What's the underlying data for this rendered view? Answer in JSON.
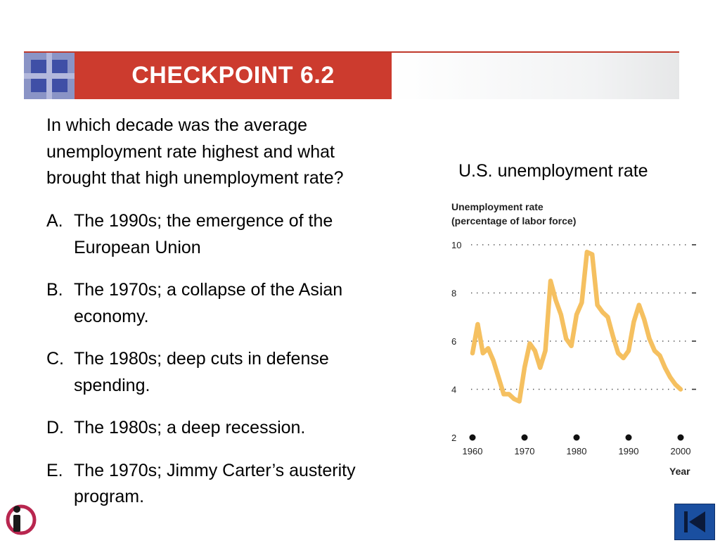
{
  "slide": {
    "title": "CHECKPOINT 6.2",
    "question": "In which decade was the average unemployment rate highest and what brought that high unemployment rate?",
    "options": [
      {
        "letter": "A.",
        "text": "The 1990s; the emergence of the European Union"
      },
      {
        "letter": "B.",
        "text": "The 1970s; a collapse of the Asian economy."
      },
      {
        "letter": "C.",
        "text": "The 1980s; deep cuts in defense spending."
      },
      {
        "letter": "D.",
        "text": "The 1980s; a deep recession."
      },
      {
        "letter": "E.",
        "text": "The 1970s; Jimmy Carter’s austerity program."
      }
    ],
    "chart_caption": "U.S. unemployment rate"
  },
  "colors": {
    "title_band": "#cc3b2e",
    "logo_dark": "#3f4fa6",
    "line": "#f5c060",
    "nav_button": "#1a4fa0"
  },
  "icons": {
    "info": "info-logo-icon",
    "back": "back-nav-icon"
  },
  "chart_data": {
    "type": "line",
    "title": "Unemployment rate",
    "subtitle": "(percentage of labor force)",
    "xlabel": "Year",
    "ylabel": "",
    "xlim": [
      1960,
      2000
    ],
    "ylim": [
      2,
      10
    ],
    "xticks": [
      1960,
      1970,
      1980,
      1990,
      2000
    ],
    "yticks": [
      2,
      4,
      6,
      8,
      10
    ],
    "grid": "dotted horizontal",
    "series": [
      {
        "x": [
          1960,
          1961,
          1962,
          1963,
          1964,
          1965,
          1966,
          1967,
          1968,
          1969,
          1970,
          1971,
          1972,
          1973,
          1974,
          1975,
          1976,
          1977,
          1978,
          1979,
          1980,
          1981,
          1982,
          1983,
          1984,
          1985,
          1986,
          1987,
          1988,
          1989,
          1990,
          1991,
          1992,
          1993,
          1994,
          1995,
          1996,
          1997,
          1998,
          1999,
          2000
        ],
        "values": [
          5.5,
          6.7,
          5.5,
          5.7,
          5.2,
          4.5,
          3.8,
          3.8,
          3.6,
          3.5,
          4.9,
          5.9,
          5.6,
          4.9,
          5.6,
          8.5,
          7.7,
          7.1,
          6.1,
          5.8,
          7.1,
          7.6,
          9.7,
          9.6,
          7.5,
          7.2,
          7.0,
          6.2,
          5.5,
          5.3,
          5.6,
          6.8,
          7.5,
          6.9,
          6.1,
          5.6,
          5.4,
          4.9,
          4.5,
          4.2,
          4.0
        ]
      }
    ]
  }
}
